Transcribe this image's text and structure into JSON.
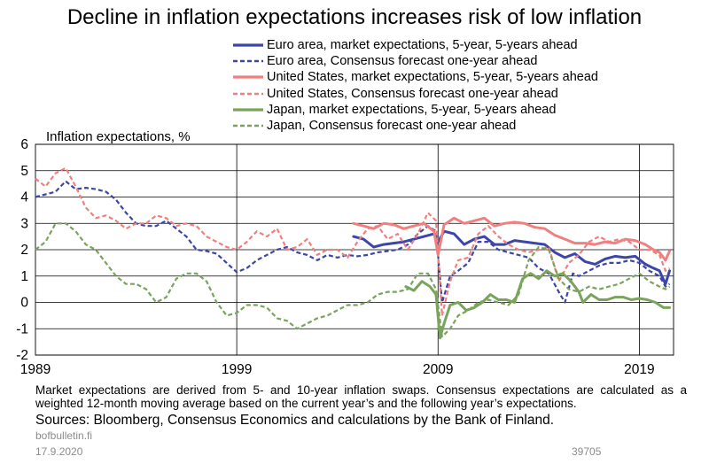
{
  "title": "Decline in inflation expectations increases risk of low inflation",
  "legend": [
    {
      "label": "Euro area, market expectations, 5-year, 5-years ahead",
      "color": "#3c46a8",
      "dash": "solid"
    },
    {
      "label": "Euro area, Consensus forecast one-year ahead",
      "color": "#3c46a8",
      "dash": "dashed"
    },
    {
      "label": "United States, market expectations, 5-year, 5-years ahead",
      "color": "#f08080",
      "dash": "solid"
    },
    {
      "label": "United States, Consensus forecast one-year ahead",
      "color": "#f08080",
      "dash": "dashed"
    },
    {
      "label": "Japan, market expectations, 5-year, 5-years ahead",
      "color": "#7aa35c",
      "dash": "solid"
    },
    {
      "label": "Japan, Consensus forecast one-year ahead",
      "color": "#7aa35c",
      "dash": "dashed"
    }
  ],
  "footer": {
    "note": "Market expectations are derived from 5- and 10-year inflation swaps. Consensus expectations are calculated as a weighted 12-month moving average based on the current year’s and the following year’s expectations.",
    "sources": "Sources: Bloomberg, Consensus Economics and calculations by the Bank of Finland.",
    "site": "bofbulletin.fi",
    "date": "17.9.2020",
    "chart_id": "39705"
  },
  "chart_data": {
    "type": "line",
    "ylabel": "Inflation expectations, %",
    "ylim": [
      -2,
      6
    ],
    "yticks": [
      -2,
      -1,
      0,
      1,
      2,
      3,
      4,
      5,
      6
    ],
    "xlim": [
      1989,
      2020.7
    ],
    "xticks": [
      1989,
      1999,
      2009,
      2019
    ],
    "xtick_labels": [
      "1989",
      "1999",
      "2009",
      "2019"
    ],
    "vertical_gridlines": [
      1999,
      2009,
      2019
    ],
    "horizontal_gridlines": [
      -2,
      -1,
      0,
      1,
      2,
      3,
      4,
      5,
      6
    ],
    "series": [
      {
        "name": "Euro area, market expectations, 5-year, 5-years ahead",
        "color": "#3c46a8",
        "dash": "solid",
        "width": 3,
        "x": [
          2004.8,
          2005.3,
          2005.8,
          2006.3,
          2006.8,
          2007.3,
          2007.8,
          2008.3,
          2008.8,
          2009.0,
          2009.3,
          2009.8,
          2010.3,
          2010.8,
          2011.3,
          2011.8,
          2012.3,
          2012.8,
          2013.3,
          2013.8,
          2014.3,
          2014.8,
          2015.3,
          2015.8,
          2016.3,
          2016.8,
          2017.3,
          2017.8,
          2018.3,
          2018.8,
          2019.3,
          2019.7,
          2020.0,
          2020.3,
          2020.5
        ],
        "y": [
          2.5,
          2.4,
          2.1,
          2.2,
          2.25,
          2.3,
          2.4,
          2.5,
          2.6,
          2.3,
          2.7,
          2.6,
          2.2,
          2.4,
          2.5,
          2.2,
          2.2,
          2.35,
          2.3,
          2.25,
          2.2,
          1.9,
          1.7,
          1.85,
          1.55,
          1.45,
          1.65,
          1.75,
          1.7,
          1.75,
          1.45,
          1.3,
          1.2,
          0.7,
          1.2
        ]
      },
      {
        "name": "Euro area, Consensus forecast one-year ahead",
        "color": "#3c46a8",
        "dash": "dashed",
        "width": 2.2,
        "x": [
          1989.0,
          1989.5,
          1990.0,
          1990.5,
          1991.0,
          1991.5,
          1992.0,
          1992.5,
          1993.0,
          1993.5,
          1994.0,
          1994.5,
          1995.0,
          1995.5,
          1996.0,
          1996.5,
          1997.0,
          1997.5,
          1998.0,
          1998.5,
          1999.0,
          1999.5,
          2000.0,
          2000.5,
          2001.0,
          2001.5,
          2002.0,
          2002.5,
          2003.0,
          2003.5,
          2004.0,
          2004.5,
          2005.0,
          2005.5,
          2006.0,
          2006.5,
          2007.0,
          2007.5,
          2008.0,
          2008.5,
          2008.9,
          2009.2,
          2009.6,
          2010.0,
          2010.5,
          2011.0,
          2011.5,
          2012.0,
          2012.5,
          2013.0,
          2013.5,
          2014.0,
          2014.5,
          2015.0,
          2015.3,
          2015.7,
          2016.0,
          2016.5,
          2017.0,
          2017.5,
          2018.0,
          2018.5,
          2019.0,
          2019.5,
          2020.0,
          2020.3,
          2020.5
        ],
        "y": [
          4.0,
          4.1,
          4.2,
          4.6,
          4.3,
          4.35,
          4.3,
          4.2,
          3.9,
          3.4,
          3.0,
          2.9,
          2.9,
          3.1,
          2.8,
          2.5,
          2.0,
          1.95,
          1.85,
          1.5,
          1.15,
          1.3,
          1.6,
          1.8,
          2.0,
          2.1,
          1.9,
          1.8,
          1.6,
          1.8,
          1.7,
          1.8,
          1.75,
          1.8,
          1.9,
          1.95,
          2.0,
          2.2,
          2.6,
          2.9,
          2.7,
          0.0,
          1.0,
          1.2,
          1.5,
          2.3,
          2.3,
          2.0,
          1.9,
          1.8,
          1.7,
          1.3,
          1.1,
          0.4,
          0.0,
          1.1,
          1.0,
          1.2,
          1.4,
          1.5,
          1.5,
          1.6,
          1.5,
          1.2,
          1.0,
          0.6,
          0.7
        ]
      },
      {
        "name": "United States, market expectations, 5-year, 5-years ahead",
        "color": "#f08080",
        "dash": "solid",
        "width": 3,
        "x": [
          2004.8,
          2005.3,
          2005.8,
          2006.3,
          2006.8,
          2007.3,
          2007.8,
          2008.3,
          2008.8,
          2009.0,
          2009.3,
          2009.8,
          2010.3,
          2010.8,
          2011.3,
          2011.8,
          2012.3,
          2012.8,
          2013.3,
          2013.8,
          2014.3,
          2014.8,
          2015.3,
          2015.8,
          2016.3,
          2016.8,
          2017.3,
          2017.8,
          2018.3,
          2018.8,
          2019.3,
          2019.7,
          2020.0,
          2020.3,
          2020.5
        ],
        "y": [
          3.0,
          2.9,
          2.8,
          3.0,
          2.95,
          2.8,
          2.9,
          3.0,
          2.7,
          1.8,
          2.95,
          3.2,
          3.0,
          3.1,
          3.2,
          2.9,
          3.0,
          3.05,
          3.0,
          2.85,
          2.8,
          2.55,
          2.4,
          2.25,
          2.25,
          2.2,
          2.3,
          2.25,
          2.4,
          2.35,
          2.2,
          2.0,
          1.9,
          1.6,
          1.95
        ]
      },
      {
        "name": "United States, Consensus forecast one-year ahead",
        "color": "#f08080",
        "dash": "dashed",
        "width": 2.2,
        "x": [
          1989.0,
          1989.5,
          1990.0,
          1990.5,
          1991.0,
          1991.5,
          1992.0,
          1992.5,
          1993.0,
          1993.5,
          1994.0,
          1994.5,
          1995.0,
          1995.5,
          1996.0,
          1996.5,
          1997.0,
          1997.5,
          1998.0,
          1998.5,
          1999.0,
          1999.5,
          2000.0,
          2000.5,
          2001.0,
          2001.5,
          2002.0,
          2002.5,
          2003.0,
          2003.5,
          2004.0,
          2004.5,
          2005.0,
          2005.5,
          2006.0,
          2006.5,
          2007.0,
          2007.5,
          2008.0,
          2008.5,
          2008.9,
          2009.2,
          2009.6,
          2010.0,
          2010.5,
          2011.0,
          2011.5,
          2012.0,
          2012.5,
          2013.0,
          2013.5,
          2014.0,
          2014.5,
          2015.0,
          2015.5,
          2016.0,
          2016.5,
          2017.0,
          2017.5,
          2018.0,
          2018.5,
          2019.0,
          2019.5,
          2020.0,
          2020.3,
          2020.5
        ],
        "y": [
          4.7,
          4.4,
          4.9,
          5.1,
          4.4,
          3.6,
          3.2,
          3.3,
          3.1,
          2.8,
          3.0,
          3.0,
          3.3,
          3.2,
          2.9,
          3.0,
          2.9,
          2.5,
          2.3,
          2.1,
          2.0,
          2.3,
          2.7,
          2.5,
          2.8,
          2.0,
          2.1,
          2.4,
          1.8,
          2.0,
          2.0,
          1.7,
          2.3,
          2.8,
          2.9,
          2.4,
          2.6,
          2.0,
          2.6,
          3.4,
          3.1,
          -0.5,
          0.8,
          1.6,
          1.7,
          2.6,
          2.9,
          2.5,
          2.2,
          2.0,
          1.9,
          2.0,
          2.1,
          0.8,
          1.5,
          1.8,
          2.3,
          2.5,
          2.3,
          2.4,
          2.3,
          2.0,
          2.0,
          1.8,
          1.2,
          1.3
        ]
      },
      {
        "name": "Japan, market expectations, 5-year, 5-years ahead",
        "color": "#7aa35c",
        "dash": "solid",
        "width": 3,
        "x": [
          2007.4,
          2007.8,
          2008.2,
          2008.6,
          2008.9,
          2009.1,
          2009.3,
          2009.6,
          2010.0,
          2010.4,
          2010.8,
          2011.2,
          2011.6,
          2012.0,
          2012.4,
          2012.8,
          2013.2,
          2013.6,
          2014.0,
          2014.4,
          2014.8,
          2015.2,
          2015.6,
          2016.0,
          2016.2,
          2016.6,
          2017.0,
          2017.4,
          2017.8,
          2018.2,
          2018.6,
          2019.0,
          2019.4,
          2019.8,
          2020.2,
          2020.5
        ],
        "y": [
          0.6,
          0.45,
          0.8,
          0.6,
          0.3,
          -1.35,
          -0.8,
          -0.1,
          0.0,
          -0.3,
          -0.2,
          0.0,
          0.3,
          0.1,
          0.1,
          0.0,
          0.9,
          1.1,
          0.9,
          1.2,
          1.0,
          1.1,
          0.8,
          0.4,
          0.0,
          0.3,
          0.1,
          0.1,
          0.2,
          0.2,
          0.1,
          0.15,
          0.1,
          0.0,
          -0.2,
          -0.2
        ]
      },
      {
        "name": "Japan, Consensus forecast one-year ahead",
        "color": "#7aa35c",
        "dash": "dashed",
        "width": 2.2,
        "x": [
          1989.0,
          1989.5,
          1990.0,
          1990.5,
          1991.0,
          1991.5,
          1992.0,
          1992.5,
          1993.0,
          1993.5,
          1994.0,
          1994.5,
          1995.0,
          1995.5,
          1996.0,
          1996.5,
          1997.0,
          1997.5,
          1998.0,
          1998.5,
          1999.0,
          1999.5,
          2000.0,
          2000.5,
          2001.0,
          2001.5,
          2002.0,
          2002.5,
          2003.0,
          2003.5,
          2004.0,
          2004.5,
          2005.0,
          2005.5,
          2006.0,
          2006.5,
          2007.0,
          2007.5,
          2008.0,
          2008.5,
          2008.9,
          2009.2,
          2009.6,
          2010.0,
          2010.5,
          2011.0,
          2011.5,
          2012.0,
          2012.5,
          2013.0,
          2013.5,
          2014.0,
          2014.5,
          2015.0,
          2015.5,
          2016.0,
          2016.5,
          2017.0,
          2017.5,
          2018.0,
          2018.5,
          2019.0,
          2019.5,
          2020.0,
          2020.3,
          2020.5
        ],
        "y": [
          2.0,
          2.3,
          3.0,
          3.0,
          2.7,
          2.2,
          2.0,
          1.5,
          1.0,
          0.7,
          0.7,
          0.5,
          0.0,
          0.2,
          0.9,
          1.1,
          1.1,
          0.8,
          0.0,
          -0.5,
          -0.4,
          -0.1,
          -0.1,
          -0.2,
          -0.6,
          -0.7,
          -1.0,
          -0.8,
          -0.6,
          -0.5,
          -0.3,
          -0.1,
          -0.1,
          0.0,
          0.3,
          0.4,
          0.4,
          0.5,
          1.1,
          1.1,
          0.5,
          -1.3,
          -1.0,
          -0.5,
          -0.3,
          0.0,
          0.1,
          0.0,
          -0.1,
          0.3,
          1.6,
          2.1,
          2.0,
          0.9,
          0.5,
          0.4,
          0.6,
          0.5,
          0.6,
          0.7,
          0.9,
          1.1,
          0.8,
          0.6,
          0.5,
          0.6
        ]
      }
    ]
  }
}
